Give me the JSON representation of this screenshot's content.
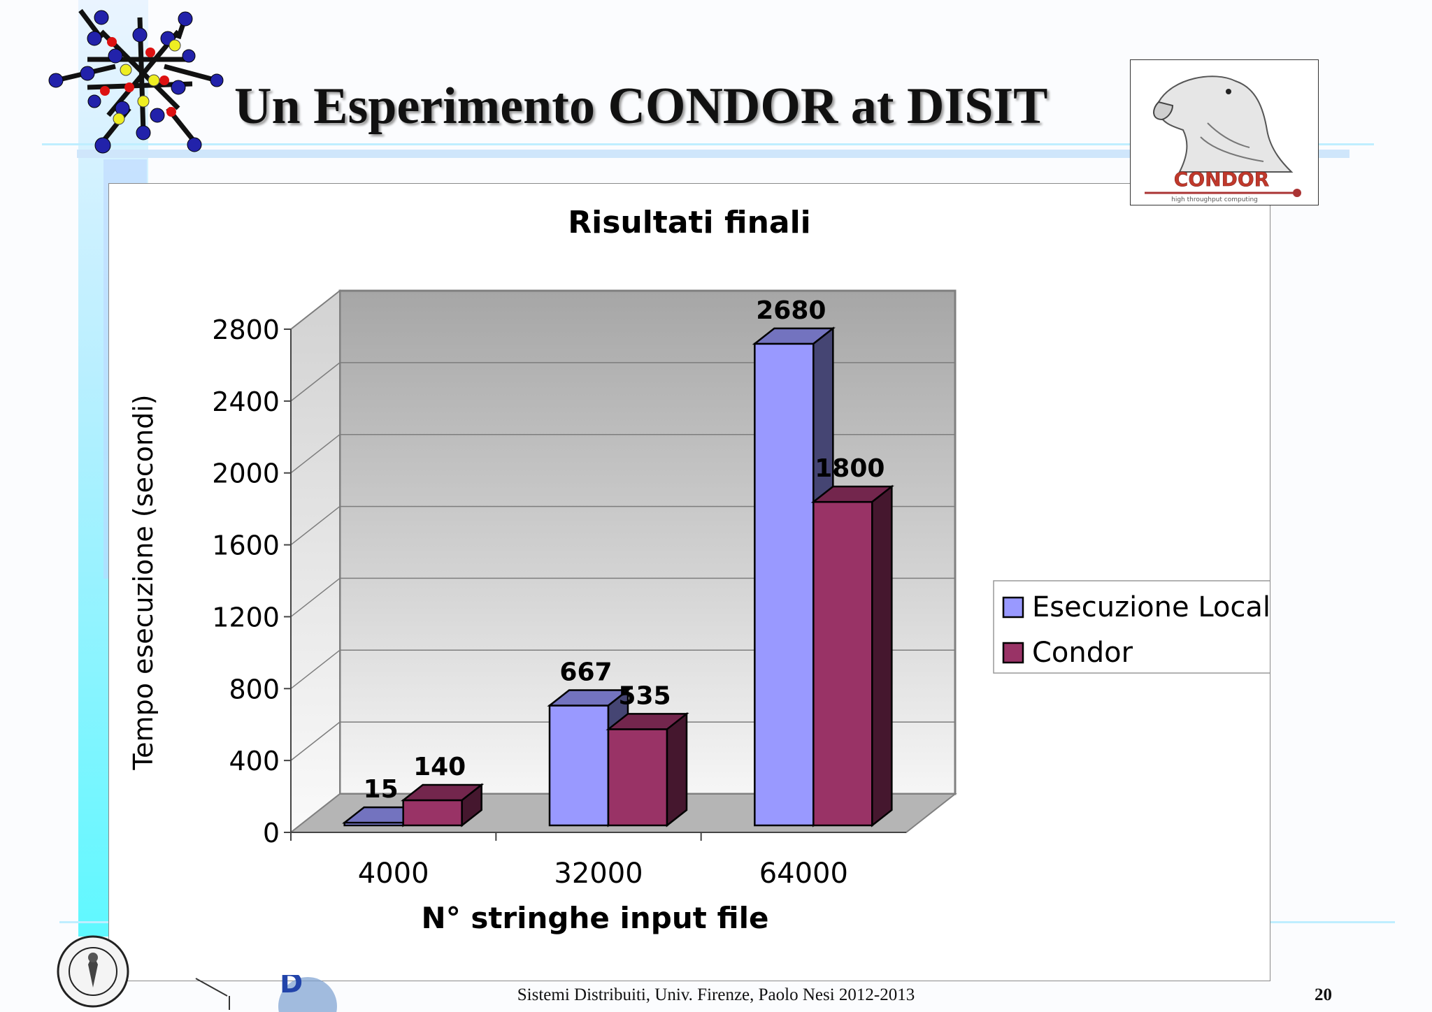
{
  "slide": {
    "title": "Un Esperimento CONDOR at DISIT",
    "footer": "Sistemi Distribuiti, Univ. Firenze, Paolo Nesi 2012-2013",
    "page_number": "20",
    "logo_text": "CONDOR",
    "logo_tagline": "high throughput computing"
  },
  "chart_data": {
    "type": "bar",
    "title": "Risultati finali",
    "xlabel": "N° stringhe input file",
    "ylabel": "Tempo esecuzione (secondi)",
    "categories": [
      "4000",
      "32000",
      "64000"
    ],
    "series": [
      {
        "name": "Esecuzione Locale",
        "values": [
          15,
          667,
          2680
        ],
        "color": "#9999ff"
      },
      {
        "name": "Condor",
        "values": [
          140,
          535,
          1800
        ],
        "color": "#993366"
      }
    ],
    "ylim": [
      0,
      2800
    ],
    "yticks": [
      0,
      400,
      800,
      1200,
      1600,
      2000,
      2400,
      2800
    ],
    "grid": true,
    "three_d": true,
    "legend_position": "right"
  }
}
